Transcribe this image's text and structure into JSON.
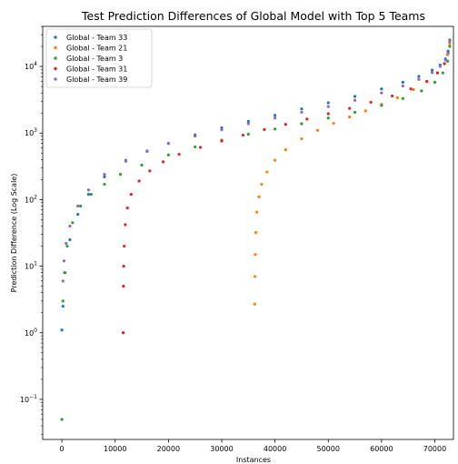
{
  "chart_data": {
    "type": "scatter",
    "title": "Test Prediction Differences of Global Model with Top 5 Teams",
    "xlabel": "Instances",
    "ylabel": "Prediction Difference (Log Scale)",
    "xlim": [
      -3600,
      73500
    ],
    "ylim": [
      0.025,
      40000
    ],
    "yscale": "log",
    "grid": false,
    "legend_position": "upper left",
    "x_ticks": [
      0,
      10000,
      20000,
      30000,
      40000,
      50000,
      60000,
      70000
    ],
    "x_tick_labels": [
      "0",
      "10000",
      "20000",
      "30000",
      "40000",
      "50000",
      "60000",
      "70000"
    ],
    "y_ticks": [
      0.1,
      1,
      10,
      100,
      1000,
      10000
    ],
    "y_tick_labels": [
      {
        "base": "10",
        "exp": "−1"
      },
      {
        "base": "10",
        "exp": "0"
      },
      {
        "base": "10",
        "exp": "1"
      },
      {
        "base": "10",
        "exp": "2"
      },
      {
        "base": "10",
        "exp": "3"
      },
      {
        "base": "10",
        "exp": "4"
      }
    ],
    "series": [
      {
        "name": "Global - Team 33",
        "color": "#1f77b4",
        "x": [
          0,
          200,
          600,
          1500,
          3000,
          5000,
          8000,
          12000,
          16000,
          20000,
          25000,
          30000,
          35000,
          40000,
          45000,
          50000,
          55000,
          60000,
          64000,
          67000,
          69500,
          71000,
          72000,
          72500,
          72800
        ],
        "y": [
          1.1,
          2.5,
          8,
          25,
          60,
          120,
          220,
          380,
          530,
          700,
          940,
          1200,
          1500,
          1850,
          2300,
          2850,
          3550,
          4600,
          5800,
          7100,
          8800,
          10500,
          13000,
          17000,
          25000
        ]
      },
      {
        "name": "Global - Team 21",
        "color": "#ff7f0e",
        "x": [
          36200,
          36250,
          36300,
          36400,
          36600,
          37000,
          37500,
          38500,
          40000,
          42000,
          45000,
          48000,
          51000,
          54000,
          57000,
          60000,
          63000,
          66000,
          68500,
          70500,
          71800,
          72400,
          72800
        ],
        "y": [
          2.7,
          7,
          15,
          32,
          65,
          110,
          170,
          260,
          390,
          560,
          820,
          1100,
          1400,
          1750,
          2150,
          2700,
          3400,
          4500,
          5900,
          8000,
          11000,
          15000,
          22000
        ]
      },
      {
        "name": "Global - Team 3",
        "color": "#2ca02c",
        "x": [
          0,
          200,
          500,
          1000,
          2000,
          3500,
          5500,
          8000,
          11000,
          15000,
          20000,
          25000,
          30000,
          35000,
          40000,
          45000,
          50000,
          55000,
          60000,
          64000,
          67500,
          70000,
          71500,
          72400,
          72800
        ],
        "y": [
          0.05,
          3,
          8,
          20,
          45,
          80,
          120,
          170,
          240,
          330,
          470,
          620,
          780,
          960,
          1150,
          1380,
          1680,
          2050,
          2600,
          3300,
          4300,
          5800,
          8000,
          12000,
          20000
        ]
      },
      {
        "name": "Global - Team 31",
        "color": "#d62728",
        "x": [
          11500,
          11550,
          11600,
          11700,
          11900,
          12300,
          13000,
          14500,
          16500,
          19000,
          22000,
          26000,
          30000,
          34000,
          38000,
          42000,
          46000,
          50000,
          54000,
          58000,
          62000,
          65500,
          68500,
          70500,
          71800,
          72500,
          72800
        ],
        "y": [
          1.0,
          5,
          10,
          20,
          42,
          75,
          120,
          190,
          270,
          370,
          480,
          610,
          760,
          930,
          1130,
          1350,
          1620,
          1950,
          2350,
          2900,
          3600,
          4600,
          6000,
          8000,
          11000,
          16000,
          24000
        ]
      },
      {
        "name": "Global - Team 39",
        "color": "#9467bd",
        "x": [
          200,
          400,
          800,
          1500,
          3000,
          5000,
          8000,
          12000,
          16000,
          20000,
          25000,
          30000,
          35000,
          40000,
          45000,
          50000,
          55000,
          60000,
          64000,
          67000,
          69500,
          71000,
          72000,
          72500,
          72800
        ],
        "y": [
          6,
          12,
          22,
          40,
          80,
          140,
          240,
          390,
          540,
          700,
          900,
          1120,
          1380,
          1680,
          2050,
          2500,
          3100,
          4000,
          5100,
          6400,
          8100,
          10000,
          12500,
          16000,
          24000
        ]
      }
    ]
  }
}
